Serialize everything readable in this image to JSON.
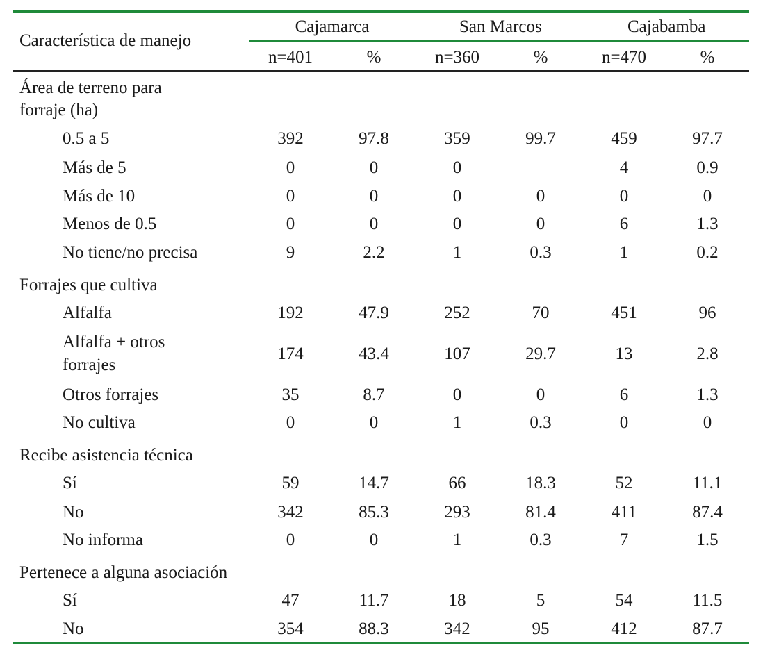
{
  "header": {
    "characteristic_label": "Característica de manejo",
    "groups": [
      "Cajamarca",
      "San Marcos",
      "Cajabamba"
    ],
    "subheaders": [
      "n=401",
      "%",
      "n=360",
      "%",
      "n=470",
      "%"
    ]
  },
  "sections": [
    {
      "title_lines": [
        "Área de terreno para",
        "forraje (ha)"
      ],
      "rows": [
        {
          "label": [
            "0.5 a 5"
          ],
          "values": [
            "392",
            "97.8",
            "359",
            "99.7",
            "459",
            "97.7"
          ]
        },
        {
          "label": [
            "Más de 5"
          ],
          "values": [
            "0",
            "0",
            "0",
            "",
            "4",
            "0.9"
          ]
        },
        {
          "label": [
            "Más de 10"
          ],
          "values": [
            "0",
            "0",
            "0",
            "0",
            "0",
            "0"
          ]
        },
        {
          "label": [
            "Menos de 0.5"
          ],
          "values": [
            "0",
            "0",
            "0",
            "0",
            "6",
            "1.3"
          ]
        },
        {
          "label": [
            "No tiene/no precisa"
          ],
          "values": [
            "9",
            "2.2",
            "1",
            "0.3",
            "1",
            "0.2"
          ]
        }
      ]
    },
    {
      "title_lines": [
        "Forrajes que cultiva"
      ],
      "rows": [
        {
          "label": [
            "Alfalfa"
          ],
          "values": [
            "192",
            "47.9",
            "252",
            "70",
            "451",
            "96"
          ]
        },
        {
          "label": [
            "Alfalfa + otros",
            "forrajes"
          ],
          "values": [
            "174",
            "43.4",
            "107",
            "29.7",
            "13",
            "2.8"
          ]
        },
        {
          "label": [
            "Otros forrajes"
          ],
          "values": [
            "35",
            "8.7",
            "0",
            "0",
            "6",
            "1.3"
          ]
        },
        {
          "label": [
            "No cultiva"
          ],
          "values": [
            "0",
            "0",
            "1",
            "0.3",
            "0",
            "0"
          ]
        }
      ]
    },
    {
      "title_lines": [
        "Recibe asistencia técnica"
      ],
      "rows": [
        {
          "label": [
            "Sí"
          ],
          "values": [
            "59",
            "14.7",
            "66",
            "18.3",
            "52",
            "11.1"
          ]
        },
        {
          "label": [
            "No"
          ],
          "values": [
            "342",
            "85.3",
            "293",
            "81.4",
            "411",
            "87.4"
          ]
        },
        {
          "label": [
            "No informa"
          ],
          "values": [
            "0",
            "0",
            "1",
            "0.3",
            "7",
            "1.5"
          ]
        }
      ]
    },
    {
      "title_lines": [
        "Pertenece a alguna asociación"
      ],
      "rows": [
        {
          "label": [
            "Sí"
          ],
          "values": [
            "47",
            "11.7",
            "18",
            "5",
            "54",
            "11.5"
          ]
        },
        {
          "label": [
            "No"
          ],
          "values": [
            "354",
            "88.3",
            "342",
            "95",
            "412",
            "87.7"
          ]
        }
      ]
    }
  ],
  "colors": {
    "rule_accent": "#1f8a3a",
    "text": "#1a1a1a"
  }
}
